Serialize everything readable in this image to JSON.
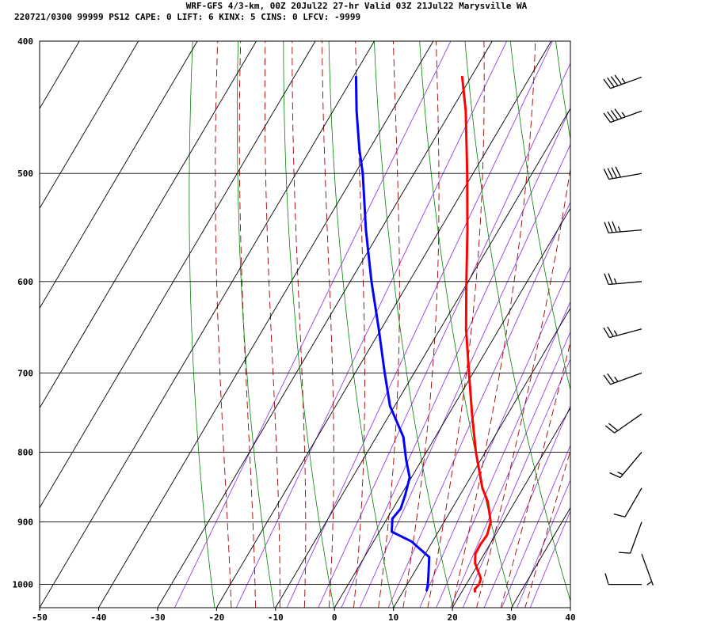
{
  "header": {
    "line1": "WRF-GFS 4/3-km, 00Z 20Jul22 27-hr Valid 03Z 21Jul22 Marysville WA",
    "line2": "220721/0300 99999  PS12    CAPE:     0 LIFT:     6 KINX:     5 CINS:     0 LFCV: -9999"
  },
  "chart_data": {
    "type": "line",
    "subtype": "skew-T log-P sounding",
    "title": "WRF-GFS 4/3-km, 00Z 20Jul22 27-hr Valid 03Z 21Jul22 Marysville WA",
    "xlabel": "",
    "ylabel": "",
    "x_ticks": [
      -50,
      -40,
      -30,
      -20,
      -10,
      0,
      10,
      20,
      30,
      40
    ],
    "y_ticks": [
      400,
      500,
      600,
      700,
      800,
      900,
      1000
    ],
    "xlim_bottom": [
      -50,
      40
    ],
    "ylim": [
      1040,
      400
    ],
    "y_scale": "log",
    "grid": true,
    "series": [
      {
        "color": "#ff0000",
        "points": [
          {
            "p": 1012,
            "t": 22.2
          },
          {
            "p": 1008,
            "t": 21.9
          },
          {
            "p": 1000,
            "t": 22.2
          },
          {
            "p": 990,
            "t": 21.9
          },
          {
            "p": 980,
            "t": 20.9
          },
          {
            "p": 965,
            "t": 19.4
          },
          {
            "p": 950,
            "t": 18.5
          },
          {
            "p": 935,
            "t": 18.4
          },
          {
            "p": 920,
            "t": 18.6
          },
          {
            "p": 900,
            "t": 17.9
          },
          {
            "p": 870,
            "t": 15.4
          },
          {
            "p": 850,
            "t": 13.1
          },
          {
            "p": 800,
            "t": 8.4
          },
          {
            "p": 750,
            "t": 3.9
          },
          {
            "p": 700,
            "t": -0.7
          },
          {
            "p": 650,
            "t": -5.6
          },
          {
            "p": 600,
            "t": -10.3
          },
          {
            "p": 550,
            "t": -15.3
          },
          {
            "p": 500,
            "t": -21.0
          },
          {
            "p": 450,
            "t": -27.5
          },
          {
            "p": 425,
            "t": -31.5
          }
        ]
      },
      {
        "color": "#0000ff",
        "points": [
          {
            "p": 1010,
            "t": 13.9
          },
          {
            "p": 1000,
            "t": 13.5
          },
          {
            "p": 985,
            "t": 12.7
          },
          {
            "p": 955,
            "t": 11.0
          },
          {
            "p": 930,
            "t": 6.4
          },
          {
            "p": 915,
            "t": 2.1
          },
          {
            "p": 895,
            "t": 0.9
          },
          {
            "p": 880,
            "t": 1.3
          },
          {
            "p": 860,
            "t": 0.7
          },
          {
            "p": 835,
            "t": -0.3
          },
          {
            "p": 810,
            "t": -2.7
          },
          {
            "p": 780,
            "t": -5.4
          },
          {
            "p": 740,
            "t": -10.8
          },
          {
            "p": 700,
            "t": -15.0
          },
          {
            "p": 650,
            "t": -20.4
          },
          {
            "p": 600,
            "t": -26.4
          },
          {
            "p": 550,
            "t": -32.5
          },
          {
            "p": 500,
            "t": -38.7
          },
          {
            "p": 480,
            "t": -41.7
          },
          {
            "p": 450,
            "t": -46.0
          },
          {
            "p": 425,
            "t": -49.5
          }
        ]
      }
    ],
    "background_lines": {
      "isotherm_color": "#000000",
      "dry_adiabat_color": "#008000",
      "moist_adiabat_color": "#a00000",
      "mixing_ratio_color": "#8a2be2"
    },
    "wind_barbs": [
      {
        "p": 1000,
        "dir": 270,
        "speed": 10
      },
      {
        "p": 950,
        "dir": 160,
        "speed": 5
      },
      {
        "p": 900,
        "dir": 200,
        "speed": 10
      },
      {
        "p": 850,
        "dir": 210,
        "speed": 10
      },
      {
        "p": 800,
        "dir": 220,
        "speed": 15
      },
      {
        "p": 750,
        "dir": 235,
        "speed": 20
      },
      {
        "p": 700,
        "dir": 250,
        "speed": 25
      },
      {
        "p": 650,
        "dir": 255,
        "speed": 25
      },
      {
        "p": 600,
        "dir": 265,
        "speed": 25
      },
      {
        "p": 550,
        "dir": 265,
        "speed": 35
      },
      {
        "p": 500,
        "dir": 260,
        "speed": 40
      },
      {
        "p": 450,
        "dir": 250,
        "speed": 45
      },
      {
        "p": 425,
        "dir": 250,
        "speed": 45
      }
    ]
  }
}
